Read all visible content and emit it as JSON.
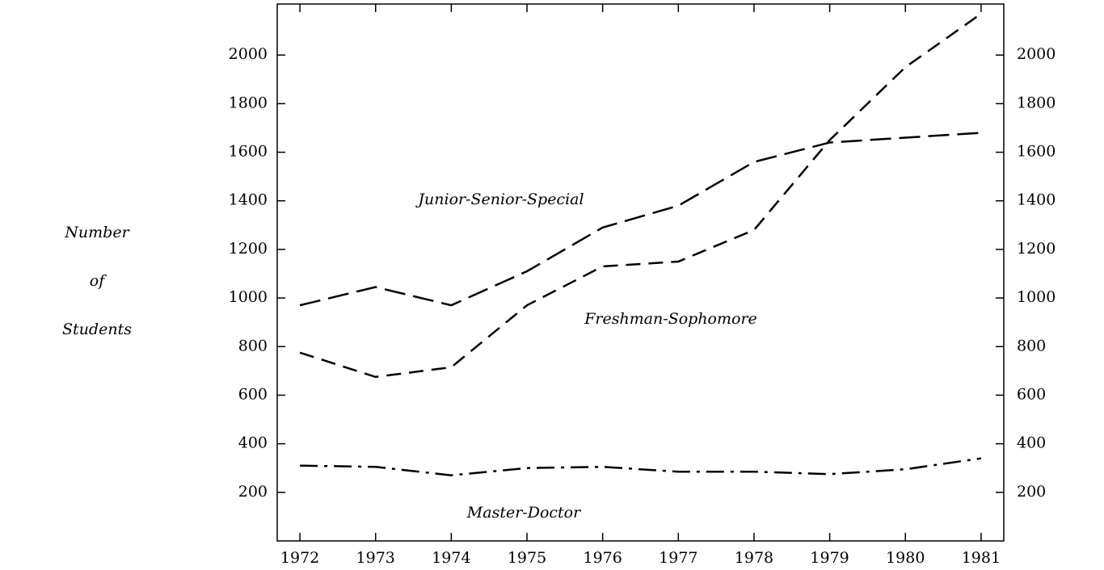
{
  "chart_data": {
    "type": "line",
    "y_label": "Number of Students",
    "x": [
      1972,
      1973,
      1974,
      1975,
      1976,
      1977,
      1978,
      1979,
      1980,
      1981
    ],
    "series": [
      {
        "name": "Junior-Senior-Special",
        "color": "#000000",
        "values": [
          970,
          1045,
          970,
          1110,
          1290,
          1380,
          1560,
          1640,
          1660,
          1680
        ]
      },
      {
        "name": "Freshman-Sophomore",
        "color": "#000000",
        "values": [
          775,
          675,
          715,
          970,
          1130,
          1150,
          1280,
          1650,
          1950,
          2170
        ]
      },
      {
        "name": "Master-Doctor",
        "color": "#000000",
        "values": [
          310,
          305,
          270,
          300,
          305,
          285,
          285,
          275,
          295,
          340
        ]
      }
    ],
    "xlim": [
      1971.7,
      1981.3
    ],
    "ylim": [
      0,
      2210
    ],
    "xticks": [
      1972,
      1973,
      1974,
      1975,
      1976,
      1977,
      1978,
      1979,
      1980,
      1981
    ],
    "yticks": [
      200,
      400,
      600,
      800,
      1000,
      1200,
      1400,
      1600,
      1800,
      2000
    ],
    "grid": false
  }
}
